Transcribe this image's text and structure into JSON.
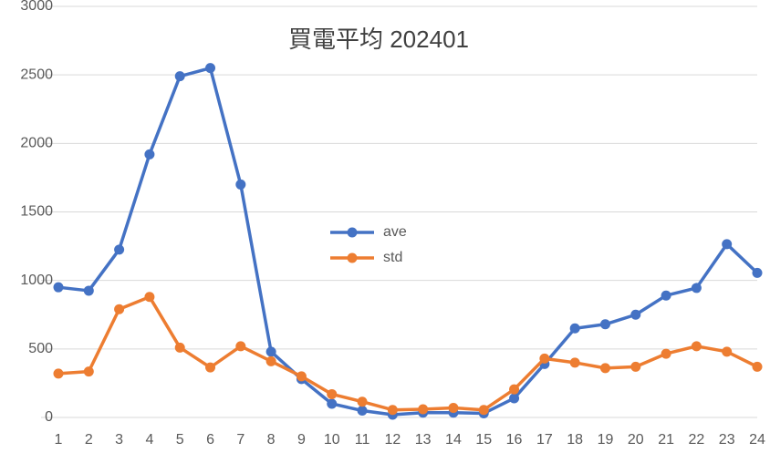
{
  "chart_data": {
    "type": "line",
    "title": "買電平均 202401",
    "categories": [
      "1",
      "2",
      "3",
      "4",
      "5",
      "6",
      "7",
      "8",
      "9",
      "10",
      "11",
      "12",
      "13",
      "14",
      "15",
      "16",
      "17",
      "18",
      "19",
      "20",
      "21",
      "22",
      "23",
      "24"
    ],
    "series": [
      {
        "name": "ave",
        "color": "#4472c4",
        "values": [
          950,
          925,
          1225,
          1920,
          2490,
          2550,
          1700,
          480,
          280,
          100,
          50,
          20,
          35,
          35,
          30,
          140,
          390,
          650,
          680,
          750,
          890,
          945,
          1265,
          1055
        ]
      },
      {
        "name": "std",
        "color": "#ed7d31",
        "values": [
          320,
          335,
          790,
          880,
          510,
          365,
          520,
          410,
          300,
          170,
          115,
          55,
          60,
          70,
          55,
          205,
          430,
          400,
          360,
          370,
          465,
          520,
          480,
          370
        ]
      }
    ],
    "ylim": [
      0,
      3000
    ],
    "yticks": [
      0,
      500,
      1000,
      1500,
      2000,
      2500,
      3000
    ],
    "grid": true
  }
}
